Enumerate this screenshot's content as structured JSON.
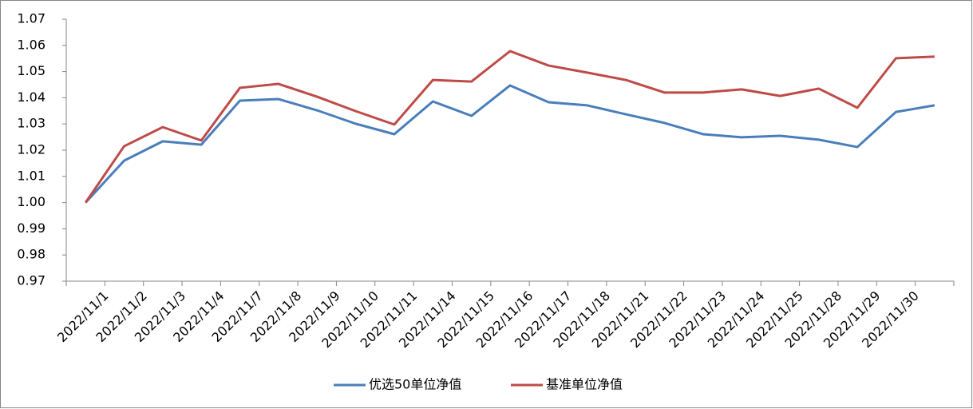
{
  "chart_data": {
    "type": "line",
    "categories": [
      null,
      "2022/11/1",
      "2022/11/2",
      "2022/11/3",
      "2022/11/4",
      "2022/11/7",
      "2022/11/8",
      "2022/11/9",
      "2022/11/10",
      "2022/11/11",
      "2022/11/14",
      "2022/11/15",
      "2022/11/16",
      "2022/11/17",
      "2022/11/18",
      "2022/11/21",
      "2022/11/22",
      "2022/11/23",
      "2022/11/24",
      "2022/11/25",
      "2022/11/28",
      "2022/11/29",
      "2022/11/30"
    ],
    "series": [
      {
        "name": "优选50单位净值",
        "color": "#4a7ebb",
        "values": [
          1.0,
          1.016,
          1.0234,
          1.0221,
          1.0389,
          1.0395,
          1.0352,
          1.0301,
          1.0261,
          1.0386,
          1.0331,
          1.0447,
          1.0383,
          1.0371,
          1.0337,
          1.0304,
          1.0261,
          1.0249,
          1.0255,
          1.024,
          1.0212,
          1.0346,
          1.0371
        ]
      },
      {
        "name": "基准单位净值",
        "color": "#be4b48",
        "values": [
          1.0,
          1.0215,
          1.0288,
          1.0237,
          1.0438,
          1.0453,
          1.0404,
          1.0349,
          1.0298,
          1.0468,
          1.0462,
          1.0578,
          1.0523,
          1.0496,
          1.0468,
          1.042,
          1.042,
          1.0432,
          1.0407,
          1.0435,
          1.0362,
          1.0551,
          1.0557
        ]
      }
    ],
    "ylim": [
      0.97,
      1.07
    ],
    "yticks": [
      {
        "value": 0.97,
        "label": "0.97"
      },
      {
        "value": 0.98,
        "label": "0.98"
      },
      {
        "value": 0.99,
        "label": "0.99"
      },
      {
        "value": 1.0,
        "label": "1.00"
      },
      {
        "value": 1.01,
        "label": "1.01"
      },
      {
        "value": 1.02,
        "label": "1.02"
      },
      {
        "value": 1.03,
        "label": "1.03"
      },
      {
        "value": 1.04,
        "label": "1.04"
      },
      {
        "value": 1.05,
        "label": "1.05"
      },
      {
        "value": 1.06,
        "label": "1.06"
      },
      {
        "value": 1.07,
        "label": "1.07"
      }
    ],
    "legend": "bottom"
  }
}
